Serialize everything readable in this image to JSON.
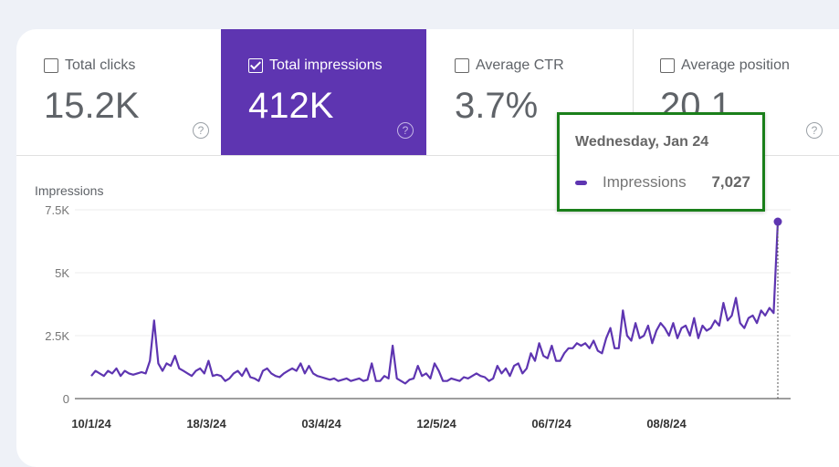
{
  "metrics": [
    {
      "label": "Total clicks",
      "value": "15.2K",
      "checked": false
    },
    {
      "label": "Total impressions",
      "value": "412K",
      "checked": true
    },
    {
      "label": "Average CTR",
      "value": "3.7%",
      "checked": false
    },
    {
      "label": "Average position",
      "value": "20.1",
      "checked": false
    }
  ],
  "help_icon": "?",
  "tooltip": {
    "date": "Wednesday, Jan 24",
    "series": "Impressions",
    "value": "7,027"
  },
  "colors": {
    "accent": "#5e35b1",
    "tooltip_border": "#1a7f1a"
  },
  "chart_data": {
    "type": "line",
    "ylabel": "Impressions",
    "ylim": [
      0,
      7500
    ],
    "yticks": [
      {
        "v": 0,
        "label": "0"
      },
      {
        "v": 2500,
        "label": "2.5K"
      },
      {
        "v": 5000,
        "label": "5K"
      },
      {
        "v": 7500,
        "label": "7.5K"
      }
    ],
    "xticks": [
      "10/1/24",
      "18/3/24",
      "03/4/24",
      "12/5/24",
      "06/7/24",
      "08/8/24"
    ],
    "grid": true,
    "series": [
      {
        "name": "Impressions",
        "color": "#5e35b1",
        "values_thousands": [
          0.9,
          1.1,
          1.0,
          0.9,
          1.1,
          1.0,
          1.2,
          0.9,
          1.1,
          1.0,
          0.95,
          1.0,
          1.05,
          1.0,
          1.5,
          3.1,
          1.4,
          1.1,
          1.4,
          1.3,
          1.7,
          1.2,
          1.1,
          1.0,
          0.9,
          1.1,
          1.2,
          1.0,
          1.5,
          0.9,
          0.95,
          0.9,
          0.7,
          0.8,
          1.0,
          1.1,
          0.9,
          1.2,
          0.85,
          0.8,
          0.7,
          1.1,
          1.2,
          1.0,
          0.9,
          0.85,
          1.0,
          1.1,
          1.2,
          1.1,
          1.4,
          1.0,
          1.3,
          1.0,
          0.9,
          0.85,
          0.8,
          0.75,
          0.8,
          0.7,
          0.75,
          0.8,
          0.7,
          0.75,
          0.8,
          0.7,
          0.75,
          1.4,
          0.7,
          0.7,
          0.9,
          0.8,
          2.1,
          0.8,
          0.7,
          0.6,
          0.75,
          0.8,
          1.3,
          0.9,
          1.0,
          0.8,
          1.4,
          1.1,
          0.7,
          0.7,
          0.8,
          0.75,
          0.7,
          0.85,
          0.8,
          0.9,
          1.0,
          0.9,
          0.85,
          0.7,
          0.8,
          1.3,
          1.0,
          1.2,
          0.9,
          1.3,
          1.4,
          1.0,
          1.2,
          1.8,
          1.5,
          2.2,
          1.7,
          1.6,
          2.1,
          1.5,
          1.5,
          1.8,
          2.0,
          2.0,
          2.2,
          2.1,
          2.2,
          2.0,
          2.3,
          1.9,
          1.8,
          2.4,
          2.8,
          2.0,
          2.0,
          3.5,
          2.5,
          2.3,
          3.0,
          2.4,
          2.5,
          2.9,
          2.2,
          2.7,
          3.0,
          2.8,
          2.5,
          3.0,
          2.4,
          2.8,
          2.9,
          2.5,
          3.2,
          2.4,
          2.9,
          2.7,
          2.8,
          3.1,
          2.9,
          3.8,
          3.1,
          3.3,
          4.0,
          3.0,
          2.8,
          3.2,
          3.3,
          3.0,
          3.5,
          3.3,
          3.6,
          3.4,
          7.027
        ]
      }
    ]
  }
}
